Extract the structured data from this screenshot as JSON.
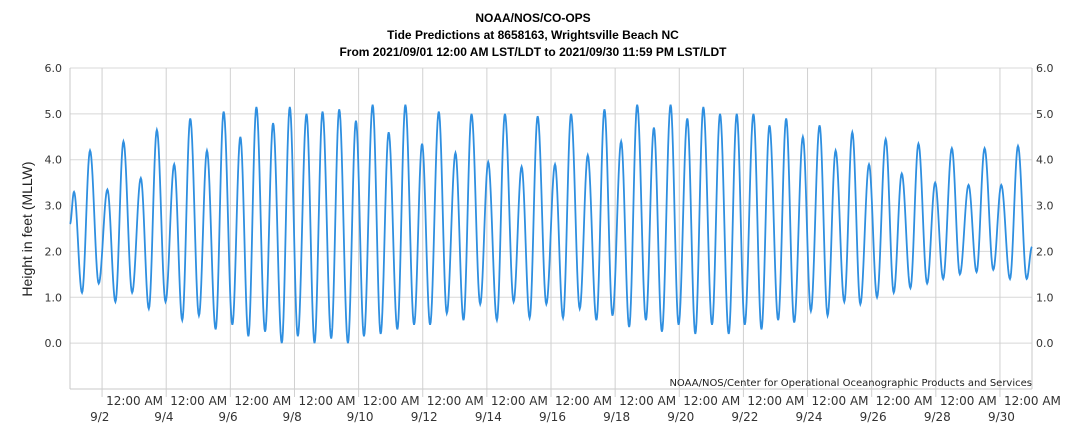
{
  "chart_data": {
    "type": "line",
    "title": "NOAA/NOS/CO-OPS",
    "subtitle": "Tide Predictions at 8658163, Wrightsville Beach NC",
    "subtitle2": "From 2021/09/01 12:00 AM LST/LDT to 2021/09/30 11:59 PM LST/LDT",
    "ylabel": "Height in feet (MLLW)",
    "credit": "NOAA/NOS/Center for Operational Oceanographic Products and Services",
    "xlim": [
      "2021-09-01 00:00",
      "2021-09-30 23:59"
    ],
    "ylim": [
      -1.0,
      6.0
    ],
    "yticks": [
      "6.0",
      "5.0",
      "4.0",
      "3.0",
      "2.0",
      "1.0",
      "0.0"
    ],
    "ytick_values": [
      6,
      5,
      4,
      3,
      2,
      1,
      0
    ],
    "xticks": [
      {
        "time": "12:00 AM",
        "date": "9/2"
      },
      {
        "time": "12:00 AM",
        "date": "9/4"
      },
      {
        "time": "12:00 AM",
        "date": "9/6"
      },
      {
        "time": "12:00 AM",
        "date": "9/8"
      },
      {
        "time": "12:00 AM",
        "date": "9/10"
      },
      {
        "time": "12:00 AM",
        "date": "9/12"
      },
      {
        "time": "12:00 AM",
        "date": "9/14"
      },
      {
        "time": "12:00 AM",
        "date": "9/16"
      },
      {
        "time": "12:00 AM",
        "date": "9/18"
      },
      {
        "time": "12:00 AM",
        "date": "9/20"
      },
      {
        "time": "12:00 AM",
        "date": "9/22"
      },
      {
        "time": "12:00 AM",
        "date": "9/24"
      },
      {
        "time": "12:00 AM",
        "date": "9/26"
      },
      {
        "time": "12:00 AM",
        "date": "9/28"
      },
      {
        "time": "12:00 AM",
        "date": "9/30"
      }
    ],
    "grid": true,
    "line_color": "#2f8fe0",
    "series": [
      {
        "extrema": [
          [
            "2021-09-01 00:00",
            2.6
          ],
          [
            "2021-09-01 03:00",
            3.3
          ],
          [
            "2021-09-01 09:00",
            1.1
          ],
          [
            "2021-09-01 15:00",
            4.2
          ],
          [
            "2021-09-01 21:30",
            1.3
          ],
          [
            "2021-09-02 04:00",
            3.35
          ],
          [
            "2021-09-02 10:00",
            0.9
          ],
          [
            "2021-09-02 16:00",
            4.4
          ],
          [
            "2021-09-02 22:30",
            1.1
          ],
          [
            "2021-09-03 05:00",
            3.6
          ],
          [
            "2021-09-03 11:00",
            0.75
          ],
          [
            "2021-09-03 17:00",
            4.65
          ],
          [
            "2021-09-03 23:30",
            0.9
          ],
          [
            "2021-09-04 06:00",
            3.9
          ],
          [
            "2021-09-04 12:00",
            0.5
          ],
          [
            "2021-09-04 18:00",
            4.9
          ],
          [
            "2021-09-05 00:30",
            0.6
          ],
          [
            "2021-09-05 06:30",
            4.2
          ],
          [
            "2021-09-05 13:00",
            0.3
          ],
          [
            "2021-09-05 19:00",
            5.05
          ],
          [
            "2021-09-06 01:30",
            0.4
          ],
          [
            "2021-09-06 07:30",
            4.5
          ],
          [
            "2021-09-06 13:30",
            0.15
          ],
          [
            "2021-09-06 19:30",
            5.15
          ],
          [
            "2021-09-07 02:00",
            0.25
          ],
          [
            "2021-09-07 08:00",
            4.8
          ],
          [
            "2021-09-07 14:30",
            0.0
          ],
          [
            "2021-09-07 20:30",
            5.15
          ],
          [
            "2021-09-08 02:30",
            0.15
          ],
          [
            "2021-09-08 09:00",
            5.0
          ],
          [
            "2021-09-08 15:00",
            0.0
          ],
          [
            "2021-09-08 21:00",
            5.05
          ],
          [
            "2021-09-09 03:30",
            0.1
          ],
          [
            "2021-09-09 09:30",
            5.1
          ],
          [
            "2021-09-09 16:00",
            0.0
          ],
          [
            "2021-09-09 22:00",
            4.85
          ],
          [
            "2021-09-10 04:00",
            0.15
          ],
          [
            "2021-09-10 10:30",
            5.2
          ],
          [
            "2021-09-10 16:30",
            0.2
          ],
          [
            "2021-09-10 22:30",
            4.6
          ],
          [
            "2021-09-11 05:00",
            0.3
          ],
          [
            "2021-09-11 11:00",
            5.2
          ],
          [
            "2021-09-11 17:30",
            0.4
          ],
          [
            "2021-09-11 23:30",
            4.35
          ],
          [
            "2021-09-12 05:30",
            0.4
          ],
          [
            "2021-09-12 12:00",
            5.05
          ],
          [
            "2021-09-12 18:00",
            0.65
          ],
          [
            "2021-09-13 00:30",
            4.15
          ],
          [
            "2021-09-13 06:30",
            0.5
          ],
          [
            "2021-09-13 12:30",
            5.0
          ],
          [
            "2021-09-13 19:00",
            0.85
          ],
          [
            "2021-09-14 01:00",
            3.95
          ],
          [
            "2021-09-14 07:30",
            0.5
          ],
          [
            "2021-09-14 13:30",
            5.0
          ],
          [
            "2021-09-14 20:00",
            0.9
          ],
          [
            "2021-09-15 02:00",
            3.85
          ],
          [
            "2021-09-15 08:00",
            0.55
          ],
          [
            "2021-09-15 14:00",
            4.95
          ],
          [
            "2021-09-15 20:30",
            0.85
          ],
          [
            "2021-09-16 03:00",
            3.9
          ],
          [
            "2021-09-16 09:00",
            0.55
          ],
          [
            "2021-09-16 15:00",
            5.0
          ],
          [
            "2021-09-16 21:30",
            0.75
          ],
          [
            "2021-09-17 03:30",
            4.1
          ],
          [
            "2021-09-17 10:00",
            0.5
          ],
          [
            "2021-09-17 16:00",
            5.1
          ],
          [
            "2021-09-17 22:00",
            0.6
          ],
          [
            "2021-09-18 04:30",
            4.4
          ],
          [
            "2021-09-18 10:30",
            0.35
          ],
          [
            "2021-09-18 16:30",
            5.2
          ],
          [
            "2021-09-18 23:00",
            0.5
          ],
          [
            "2021-09-19 05:00",
            4.7
          ],
          [
            "2021-09-19 11:00",
            0.25
          ],
          [
            "2021-09-19 17:30",
            5.2
          ],
          [
            "2021-09-19 23:30",
            0.4
          ],
          [
            "2021-09-20 06:00",
            4.9
          ],
          [
            "2021-09-20 12:00",
            0.2
          ],
          [
            "2021-09-20 18:00",
            5.15
          ],
          [
            "2021-09-21 00:30",
            0.4
          ],
          [
            "2021-09-21 06:30",
            5.0
          ],
          [
            "2021-09-21 13:00",
            0.2
          ],
          [
            "2021-09-21 19:00",
            5.0
          ],
          [
            "2021-09-22 01:00",
            0.4
          ],
          [
            "2021-09-22 07:30",
            5.0
          ],
          [
            "2021-09-22 13:30",
            0.3
          ],
          [
            "2021-09-22 19:30",
            4.75
          ],
          [
            "2021-09-23 02:00",
            0.5
          ],
          [
            "2021-09-23 08:00",
            4.9
          ],
          [
            "2021-09-23 14:00",
            0.45
          ],
          [
            "2021-09-23 20:30",
            4.5
          ],
          [
            "2021-09-24 02:30",
            0.7
          ],
          [
            "2021-09-24 09:00",
            4.75
          ],
          [
            "2021-09-24 15:00",
            0.6
          ],
          [
            "2021-09-24 21:00",
            4.2
          ],
          [
            "2021-09-25 03:30",
            0.9
          ],
          [
            "2021-09-25 09:30",
            4.6
          ],
          [
            "2021-09-25 15:30",
            0.85
          ],
          [
            "2021-09-25 22:00",
            3.9
          ],
          [
            "2021-09-26 04:00",
            1.0
          ],
          [
            "2021-09-26 10:30",
            4.45
          ],
          [
            "2021-09-26 16:30",
            1.1
          ],
          [
            "2021-09-26 22:30",
            3.7
          ],
          [
            "2021-09-27 05:00",
            1.2
          ],
          [
            "2021-09-27 11:00",
            4.35
          ],
          [
            "2021-09-27 17:30",
            1.3
          ],
          [
            "2021-09-27 23:30",
            3.5
          ],
          [
            "2021-09-28 05:30",
            1.4
          ],
          [
            "2021-09-28 12:00",
            4.25
          ],
          [
            "2021-09-28 18:00",
            1.5
          ],
          [
            "2021-09-29 00:30",
            3.45
          ],
          [
            "2021-09-29 06:30",
            1.55
          ],
          [
            "2021-09-29 12:30",
            4.25
          ],
          [
            "2021-09-29 19:00",
            1.6
          ],
          [
            "2021-09-30 01:00",
            3.45
          ],
          [
            "2021-09-30 07:30",
            1.4
          ],
          [
            "2021-09-30 13:30",
            4.3
          ],
          [
            "2021-09-30 20:00",
            1.4
          ],
          [
            "2021-09-30 23:59",
            2.1
          ]
        ]
      }
    ]
  }
}
